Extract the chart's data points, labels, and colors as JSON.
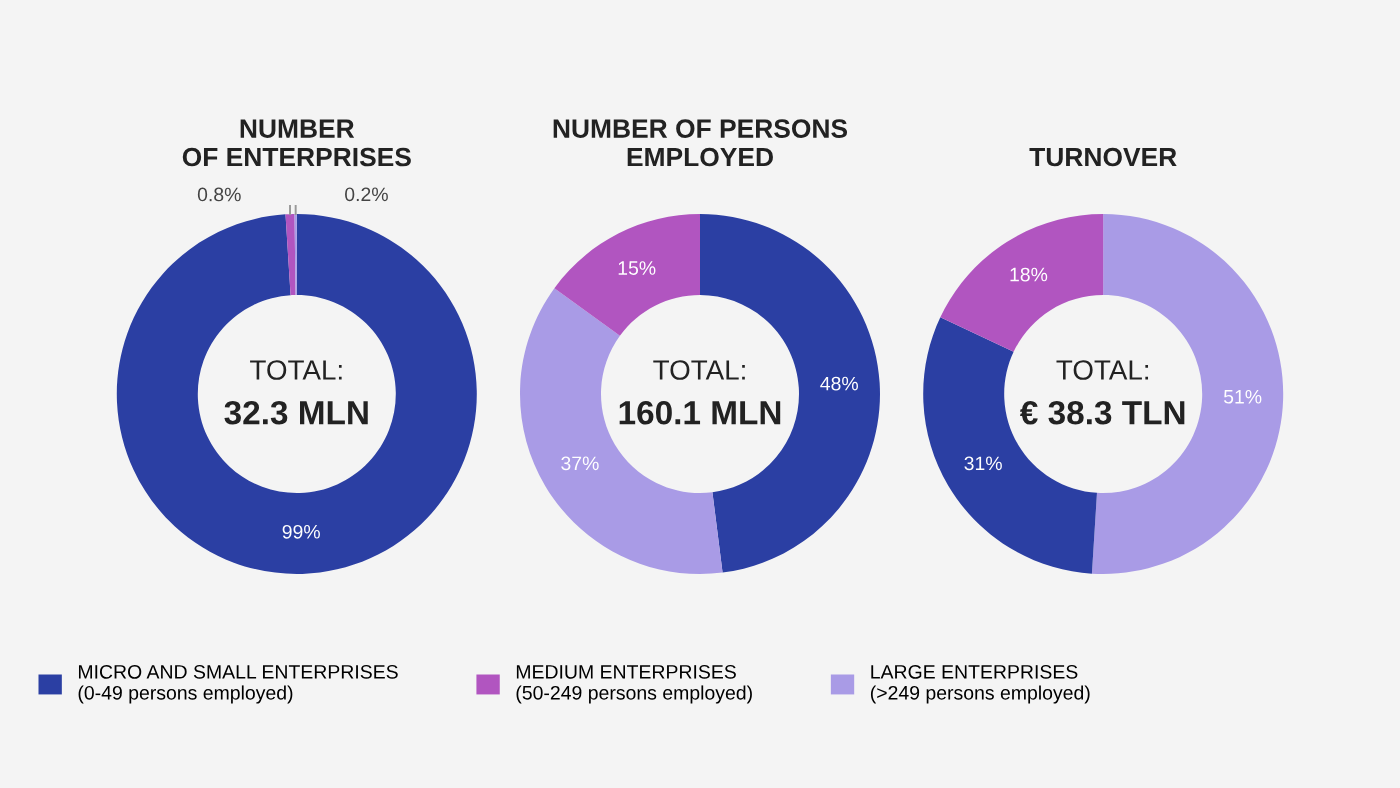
{
  "chart_data": [
    {
      "type": "donut",
      "title": "NUMBER\nOF ENTERPRISES",
      "categories": [
        "MICRO AND SMALL ENTERPRISES\n(0-49 persons employed)",
        "MEDIUM ENTERPRISES\n(50-249 persons employed)",
        "LARGE ENTERPRISES\n(>249 persons employed)"
      ],
      "values": [
        99,
        0.8,
        0.2
      ],
      "colors": [
        "#2b3fa3",
        "#b155c0",
        "#a99be6"
      ],
      "value_labels": [
        "99%",
        "0.8%",
        "0.2%"
      ],
      "annotations": [
        "TOTAL:\n32.3 MLN"
      ],
      "legend": "bottom"
    },
    {
      "type": "donut",
      "title": "NUMBER OF PERSONS\nEMPLOYED",
      "categories": [
        null,
        null,
        null
      ],
      "values": [
        48,
        37,
        15
      ],
      "colors": [
        "#2b3fa3",
        "#a99be6",
        "#b155c0"
      ],
      "value_labels": [
        "48%",
        "37%",
        "15%"
      ],
      "annotations": [
        "TOTAL:\n160.1 MLN"
      ]
    },
    {
      "type": "donut",
      "title": "TURNOVER",
      "categories": [
        null,
        null,
        null
      ],
      "values": [
        51,
        31,
        18
      ],
      "colors": [
        "#a99be6",
        "#2b3fa3",
        "#b155c0"
      ],
      "value_labels": [
        "51%",
        "31%",
        "18%"
      ],
      "annotations": [
        "TOTAL:\n€ 38.3 TLN"
      ]
    }
  ]
}
